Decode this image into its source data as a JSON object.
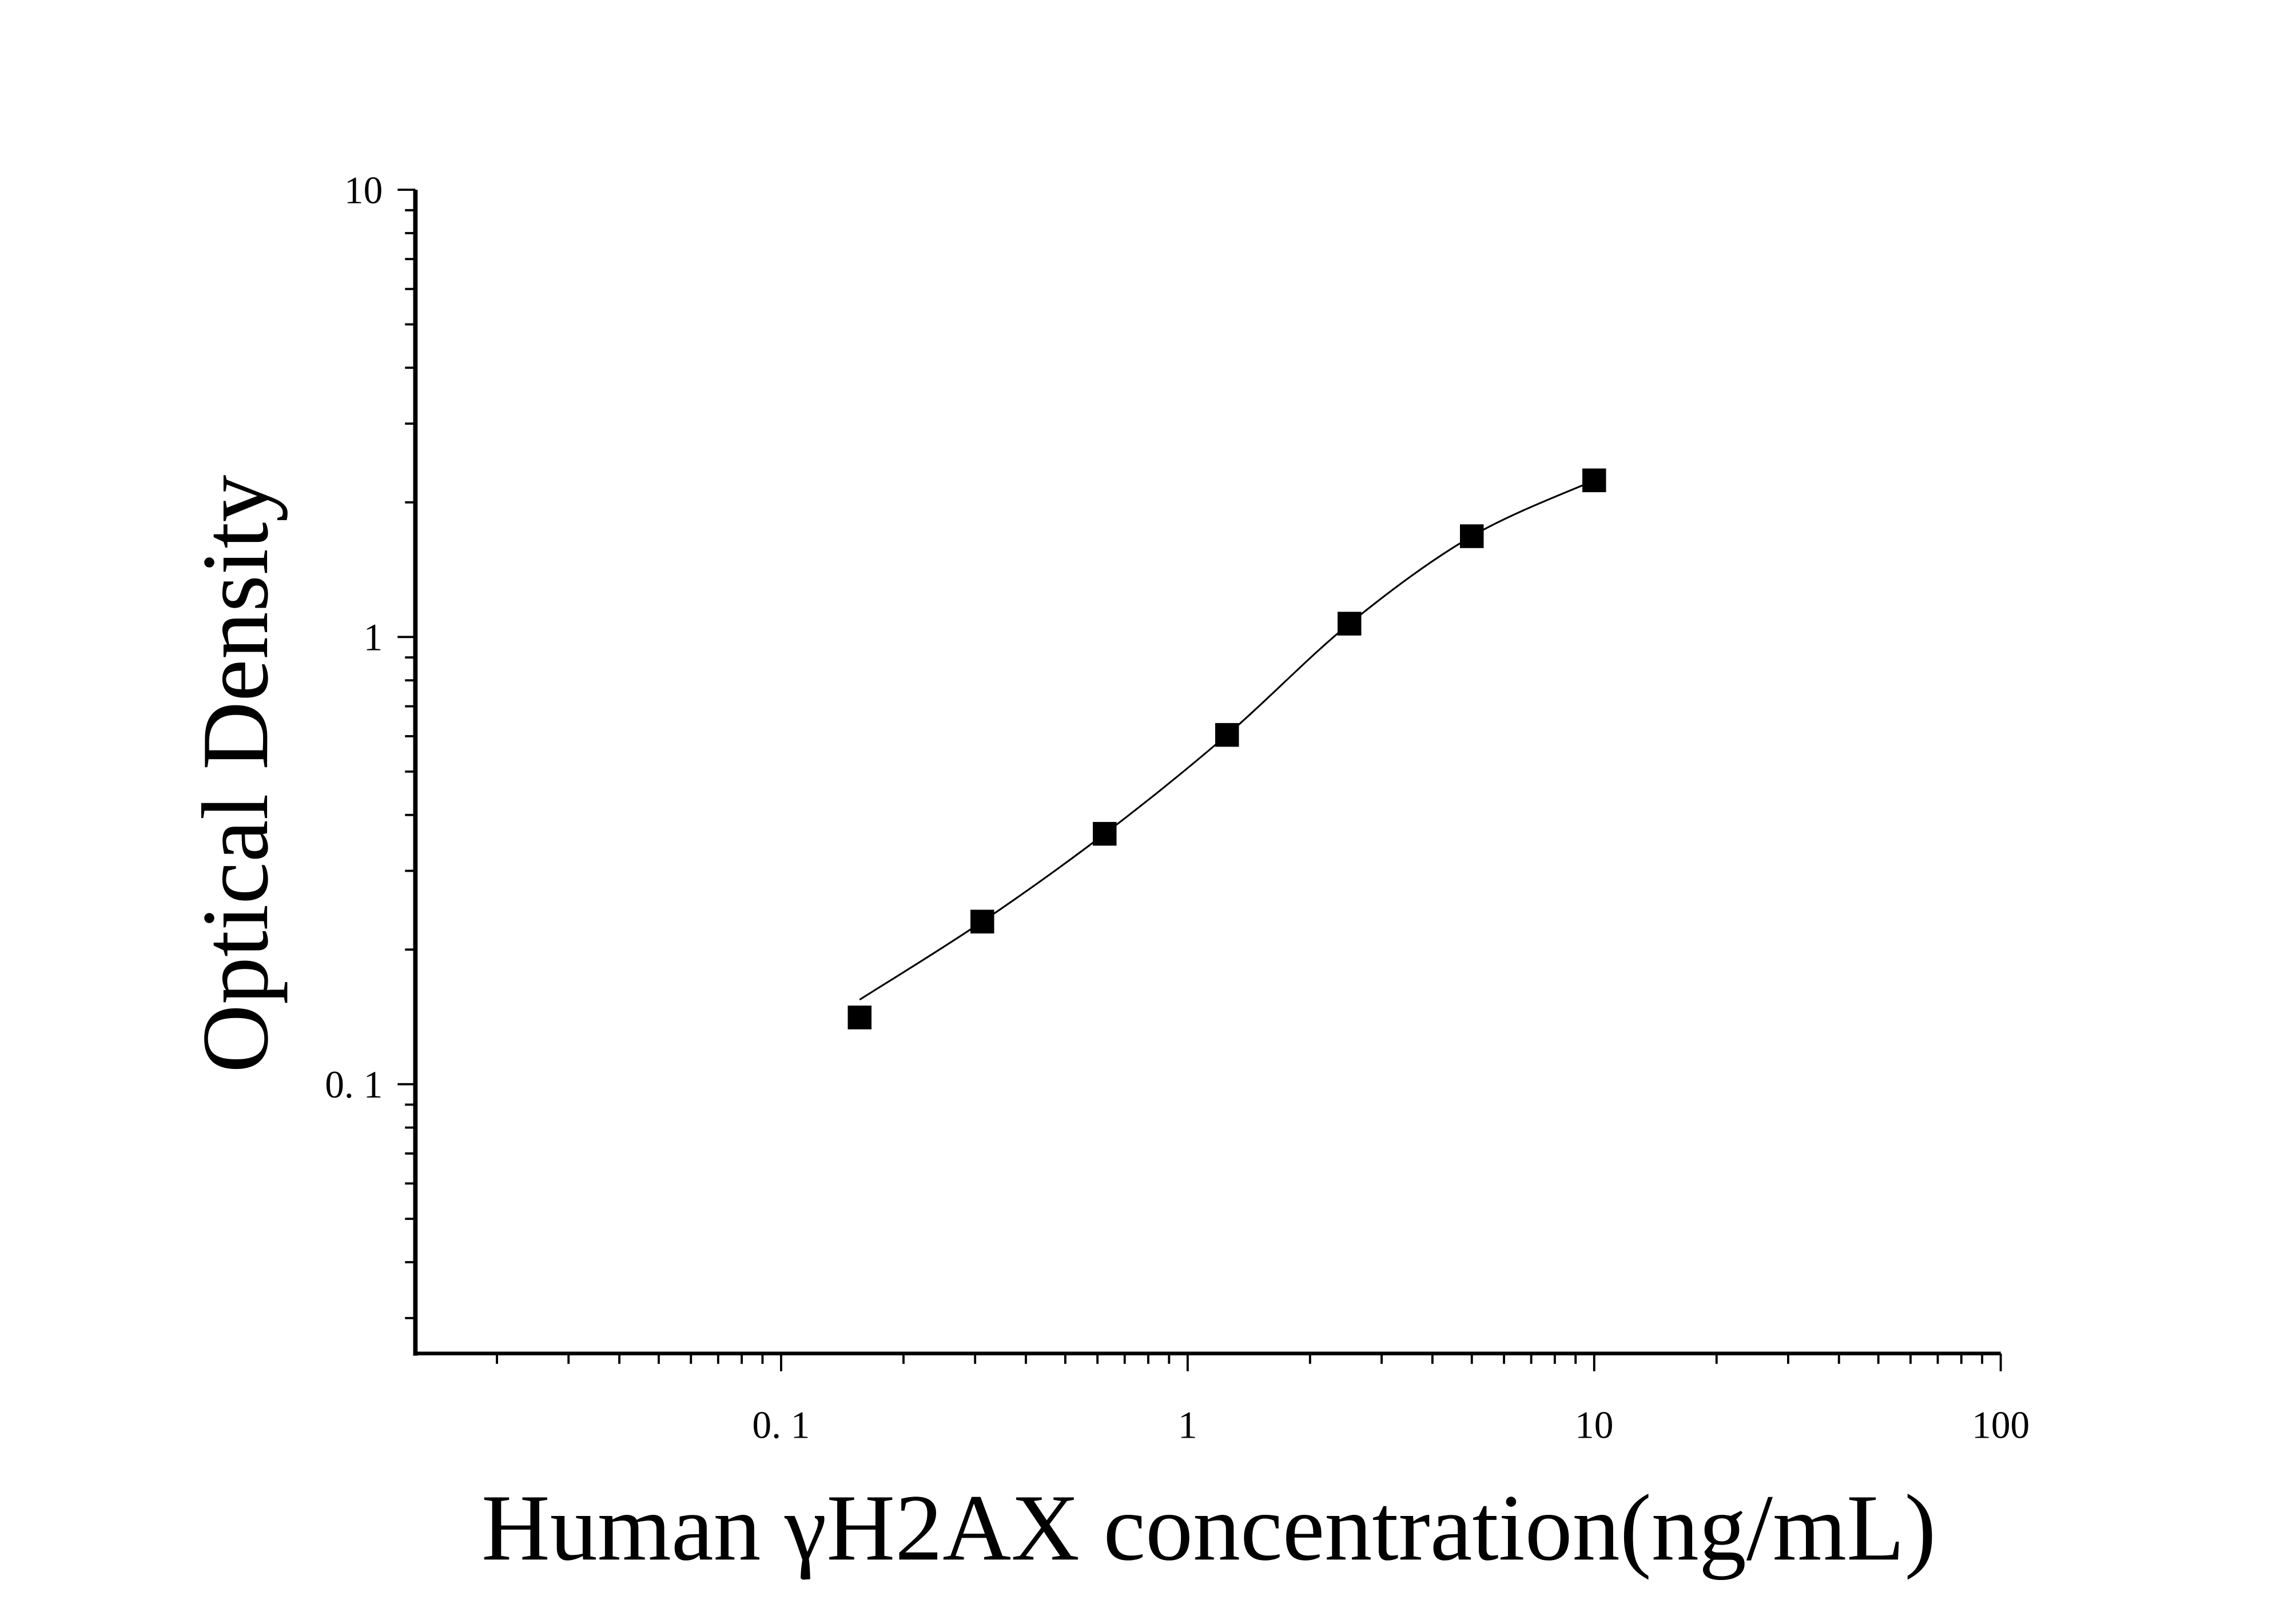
{
  "chart_data": {
    "type": "scatter",
    "title": "",
    "xlabel": "Human γH2AX concentration(ng/mL)",
    "ylabel": "Optical Density",
    "x_scale": "log",
    "y_scale": "log",
    "xlim": [
      0.0126,
      100
    ],
    "ylim": [
      0.025,
      10
    ],
    "x_ticks": [
      0.1,
      1,
      10,
      100
    ],
    "x_tick_labels": [
      "0. 1",
      "1",
      "10",
      "100"
    ],
    "y_ticks": [
      0.1,
      1,
      10
    ],
    "y_tick_labels": [
      "0. 1",
      "1",
      "10"
    ],
    "grid": false,
    "legend": "none",
    "marker": "square",
    "colors": {
      "marker": "#000000",
      "line": "#000000"
    },
    "series": [
      {
        "x": [
          0.156,
          0.3125,
          0.625,
          1.25,
          2.5,
          5,
          10
        ],
        "y": [
          0.141,
          0.231,
          0.363,
          0.604,
          1.071,
          1.68,
          2.24
        ]
      }
    ],
    "fit_curve": true
  }
}
